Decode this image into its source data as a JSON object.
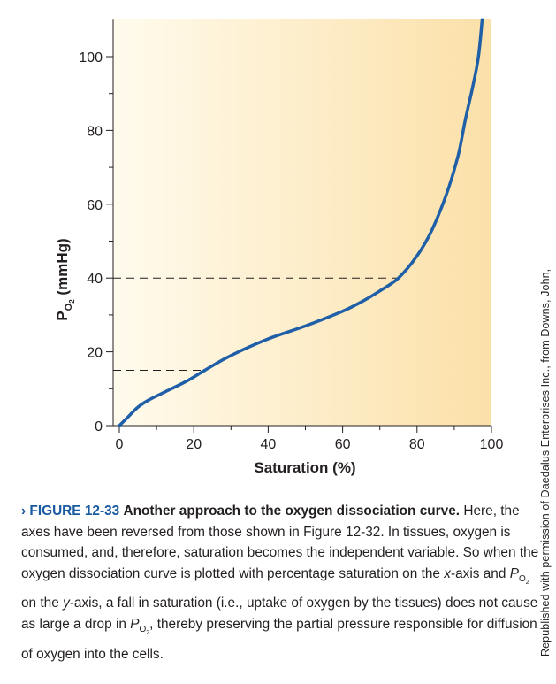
{
  "chart_data": {
    "type": "line",
    "title": "",
    "xlabel": "Saturation (%)",
    "ylabel_main": "P",
    "ylabel_sub": "O",
    "ylabel_subsub": "2",
    "ylabel_unit": " (mmHg)",
    "xlim": [
      0,
      100
    ],
    "ylim": [
      0,
      110
    ],
    "x_ticks": [
      0,
      20,
      40,
      60,
      80,
      100
    ],
    "y_ticks": [
      0,
      20,
      40,
      60,
      80,
      100
    ],
    "x_minor_ticks": [
      10,
      30,
      50,
      70,
      90
    ],
    "y_minor_ticks": [
      10,
      30,
      50,
      70,
      90
    ],
    "grid": false,
    "series": [
      {
        "color": "#1f5fa8",
        "points": [
          [
            0,
            0
          ],
          [
            2,
            2
          ],
          [
            5,
            5
          ],
          [
            8,
            7
          ],
          [
            12,
            9
          ],
          [
            18,
            12
          ],
          [
            23,
            15
          ],
          [
            30,
            19
          ],
          [
            40,
            23.5
          ],
          [
            50,
            27
          ],
          [
            60,
            31
          ],
          [
            65,
            33.5
          ],
          [
            70,
            36.5
          ],
          [
            75,
            40
          ],
          [
            80,
            46
          ],
          [
            84,
            53
          ],
          [
            88,
            63
          ],
          [
            91,
            73
          ],
          [
            93,
            83
          ],
          [
            95,
            92
          ],
          [
            96.5,
            100
          ],
          [
            97.5,
            110
          ]
        ]
      }
    ],
    "reference_lines": [
      {
        "y": 40,
        "x_end": 75
      },
      {
        "y": 15,
        "x_end": 23
      }
    ],
    "colors": {
      "curve": "#1f5fa8",
      "bg_light": "#fffbed",
      "bg_dark": "#fbe0a8"
    }
  },
  "caption": {
    "arrow": "›",
    "label": "FIGURE 12-33",
    "title": "Another approach to the oxygen dissociation curve.",
    "text_1": "Here, the axes have been reversed from those shown in Figure 12-32. In tissues, oxygen is consumed, and, therefore, saturation becomes the independent variable. So when the oxygen dissociation curve is plotted with percentage saturation on the ",
    "x_italic": "x",
    "text_2": "-axis and ",
    "po2_p": "P",
    "po2_sub": "O",
    "po2_subsub": "2",
    "text_3": " on the ",
    "y_italic": "y",
    "text_4": "-axis, a fall in saturation (i.e., uptake of oxygen by the tissues) does not cause as large a drop in ",
    "text_5": ", thereby preserving the partial pressure responsible for diffusion of oxygen into the cells."
  },
  "credit": "Republished with permission of Daedalus Enterprises Inc., from Downs, John,"
}
